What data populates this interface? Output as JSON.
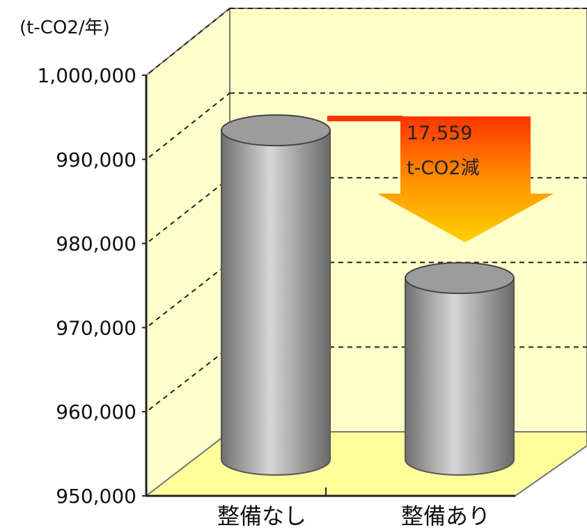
{
  "chart_data": {
    "type": "bar",
    "style": "3d-cylinder",
    "unit_label": "(t-CO2/年)",
    "categories": [
      "整備なし",
      "整備あり"
    ],
    "values": [
      996759,
      979200
    ],
    "ylim": [
      950000,
      1000000
    ],
    "yticks": [
      "1,000,000",
      "990,000",
      "980,000",
      "970,000",
      "960,000",
      "950,000"
    ],
    "grid": true,
    "annotation": {
      "lines": [
        "17,559",
        "t-CO2減"
      ]
    },
    "colors": {
      "wall": "#FFFFC8",
      "floor": "#FFFF99",
      "bar": "#A8A8A8",
      "arrow_top": "#FF3300",
      "arrow_bottom": "#FFD000"
    }
  }
}
